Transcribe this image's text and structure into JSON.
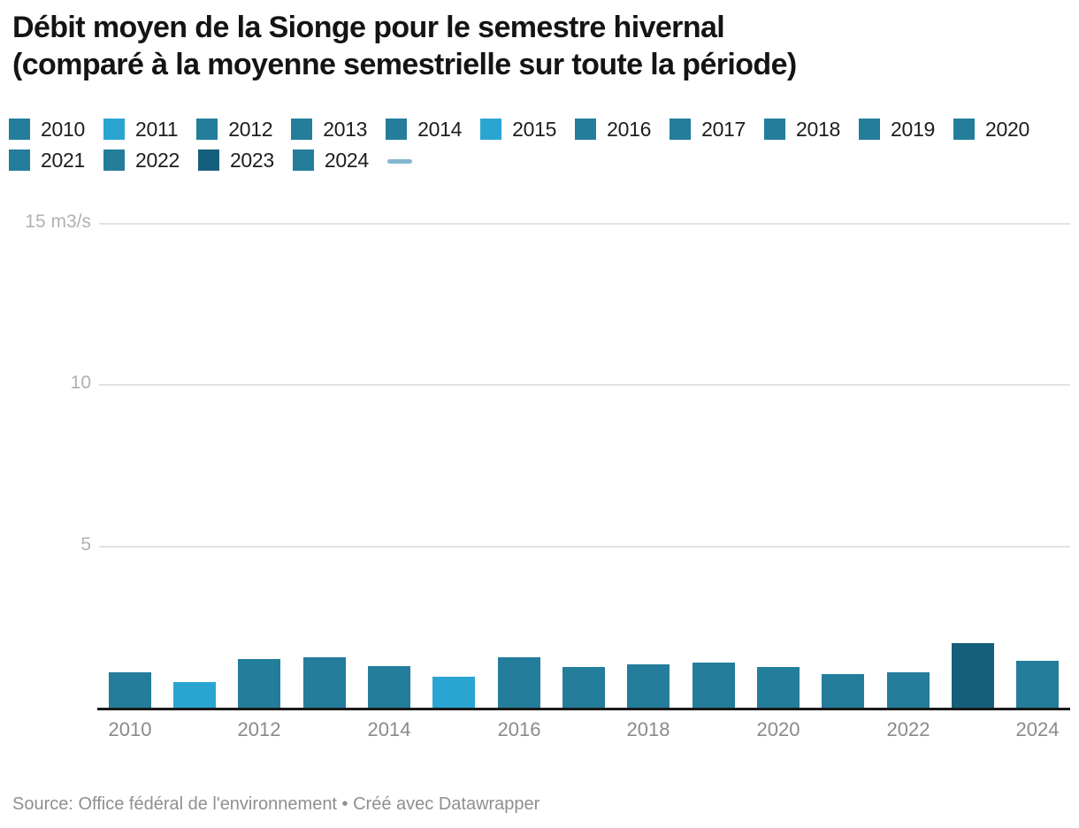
{
  "header": {
    "title_line1": "Débit moyen de la Sionge pour le semestre hivernal",
    "title_line2": "(comparé à la moyenne semestrielle sur toute la période)"
  },
  "legend": {
    "rows": [
      [
        {
          "label": "2010",
          "color": "#237d9b"
        },
        {
          "label": "2011",
          "color": "#2aa5d2"
        },
        {
          "label": "2012",
          "color": "#237d9b"
        },
        {
          "label": "2013",
          "color": "#237d9b"
        },
        {
          "label": "2014",
          "color": "#237d9b"
        },
        {
          "label": "2015",
          "color": "#2aa5d2"
        },
        {
          "label": "2016",
          "color": "#237d9b"
        },
        {
          "label": "2017",
          "color": "#237d9b"
        },
        {
          "label": "2018",
          "color": "#237d9b"
        },
        {
          "label": "2019",
          "color": "#237d9b"
        },
        {
          "label": "2020",
          "color": "#237d9b"
        }
      ],
      [
        {
          "label": "2021",
          "color": "#237d9b"
        },
        {
          "label": "2022",
          "color": "#237d9b"
        },
        {
          "label": "2023",
          "color": "#165f7c"
        },
        {
          "label": "2024",
          "color": "#237d9b"
        },
        {
          "label": "",
          "type": "line",
          "color": "#82b8cf"
        }
      ]
    ]
  },
  "chart_data": {
    "type": "bar",
    "title": "Débit moyen de la Sionge pour le semestre hivernal (comparé à la moyenne semestrielle sur toute la période)",
    "unit": "m3/s",
    "categories": [
      "2010",
      "2011",
      "2012",
      "2013",
      "2014",
      "2015",
      "2016",
      "2017",
      "2018",
      "2019",
      "2020",
      "2021",
      "2022",
      "2023",
      "2024"
    ],
    "values": [
      1.1,
      0.8,
      1.5,
      1.55,
      1.3,
      0.95,
      1.55,
      1.25,
      1.35,
      1.4,
      1.25,
      1.05,
      1.1,
      2.0,
      1.45
    ],
    "bar_colors": [
      "#237d9b",
      "#2aa5d2",
      "#237d9b",
      "#237d9b",
      "#237d9b",
      "#2aa5d2",
      "#237d9b",
      "#237d9b",
      "#237d9b",
      "#237d9b",
      "#237d9b",
      "#237d9b",
      "#237d9b",
      "#165f7c",
      "#237d9b"
    ],
    "ylim": [
      0,
      15
    ],
    "y_ticks": [
      {
        "value": 15,
        "label": "15 m3/s"
      },
      {
        "value": 10,
        "label": "10"
      },
      {
        "value": 5,
        "label": "5"
      }
    ],
    "x_ticks": [
      "2010",
      "2012",
      "2014",
      "2016",
      "2018",
      "2020",
      "2022",
      "2024"
    ],
    "grid": "horizontal",
    "legend_position": "top"
  },
  "footer": {
    "source": "Source: Office fédéral de l'environnement • Créé avec Datawrapper"
  },
  "colors": {
    "bar_default": "#237d9b",
    "bar_light": "#2aa5d2",
    "bar_dark": "#165f7c",
    "legend_line": "#82b8cf",
    "grid": "#e2e2e2",
    "axis_line": "#1a1a1a",
    "y_tick_text": "#b1b1b1",
    "x_tick_text": "#8a8a8a",
    "title_text": "#141414",
    "footer_text": "#8f8f8f"
  }
}
